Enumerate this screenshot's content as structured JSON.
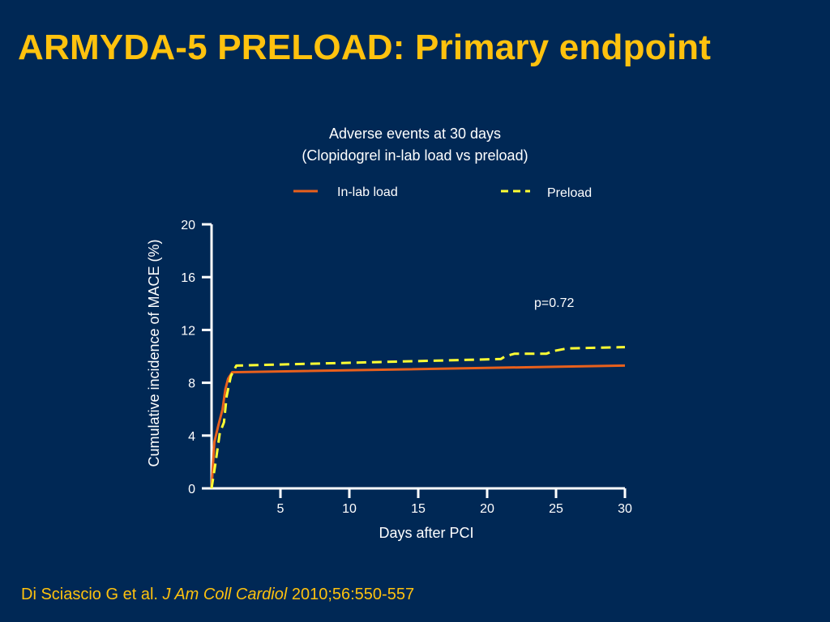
{
  "slide": {
    "title": "ARMYDA-5 PRELOAD: Primary endpoint",
    "citation_authors": "Di Sciascio G et al. ",
    "citation_journal": "J Am Coll Cardiol",
    "citation_ref": " 2010;56:550-557"
  },
  "colors": {
    "background": "#002855",
    "title": "#FFC20E",
    "in_lab_load": "#E8601C",
    "preload": "#FFFF33",
    "axis": "#FFFFFF"
  },
  "chart_data": {
    "type": "line",
    "title": "Adverse events at 30 days",
    "subtitle": "(Clopidogrel in-lab load vs preload)",
    "xlabel": "Days after PCI",
    "ylabel": "Cumulative incidence of MACE (%)",
    "xlim": [
      0,
      30
    ],
    "ylim": [
      0,
      20
    ],
    "xticks": [
      5,
      10,
      15,
      20,
      25,
      30
    ],
    "yticks": [
      0,
      4,
      8,
      12,
      16,
      20
    ],
    "grid": false,
    "legend_position": "top",
    "annotation": "p=0.72",
    "series": [
      {
        "name": "In-lab load",
        "style": "solid",
        "x": [
          0,
          0.2,
          0.5,
          0.8,
          1.0,
          1.2,
          1.5,
          30
        ],
        "y": [
          0,
          3.5,
          4.8,
          6.0,
          7.5,
          8.3,
          8.8,
          9.3
        ]
      },
      {
        "name": "Preload",
        "style": "dashed",
        "x": [
          0,
          0.3,
          0.6,
          0.9,
          1.1,
          1.4,
          1.8,
          21,
          21.3,
          22,
          24.3,
          24.8,
          25.8,
          30
        ],
        "y": [
          0,
          2.0,
          4.2,
          5.0,
          7.0,
          8.5,
          9.3,
          9.8,
          10.0,
          10.2,
          10.2,
          10.4,
          10.6,
          10.7
        ]
      }
    ]
  }
}
